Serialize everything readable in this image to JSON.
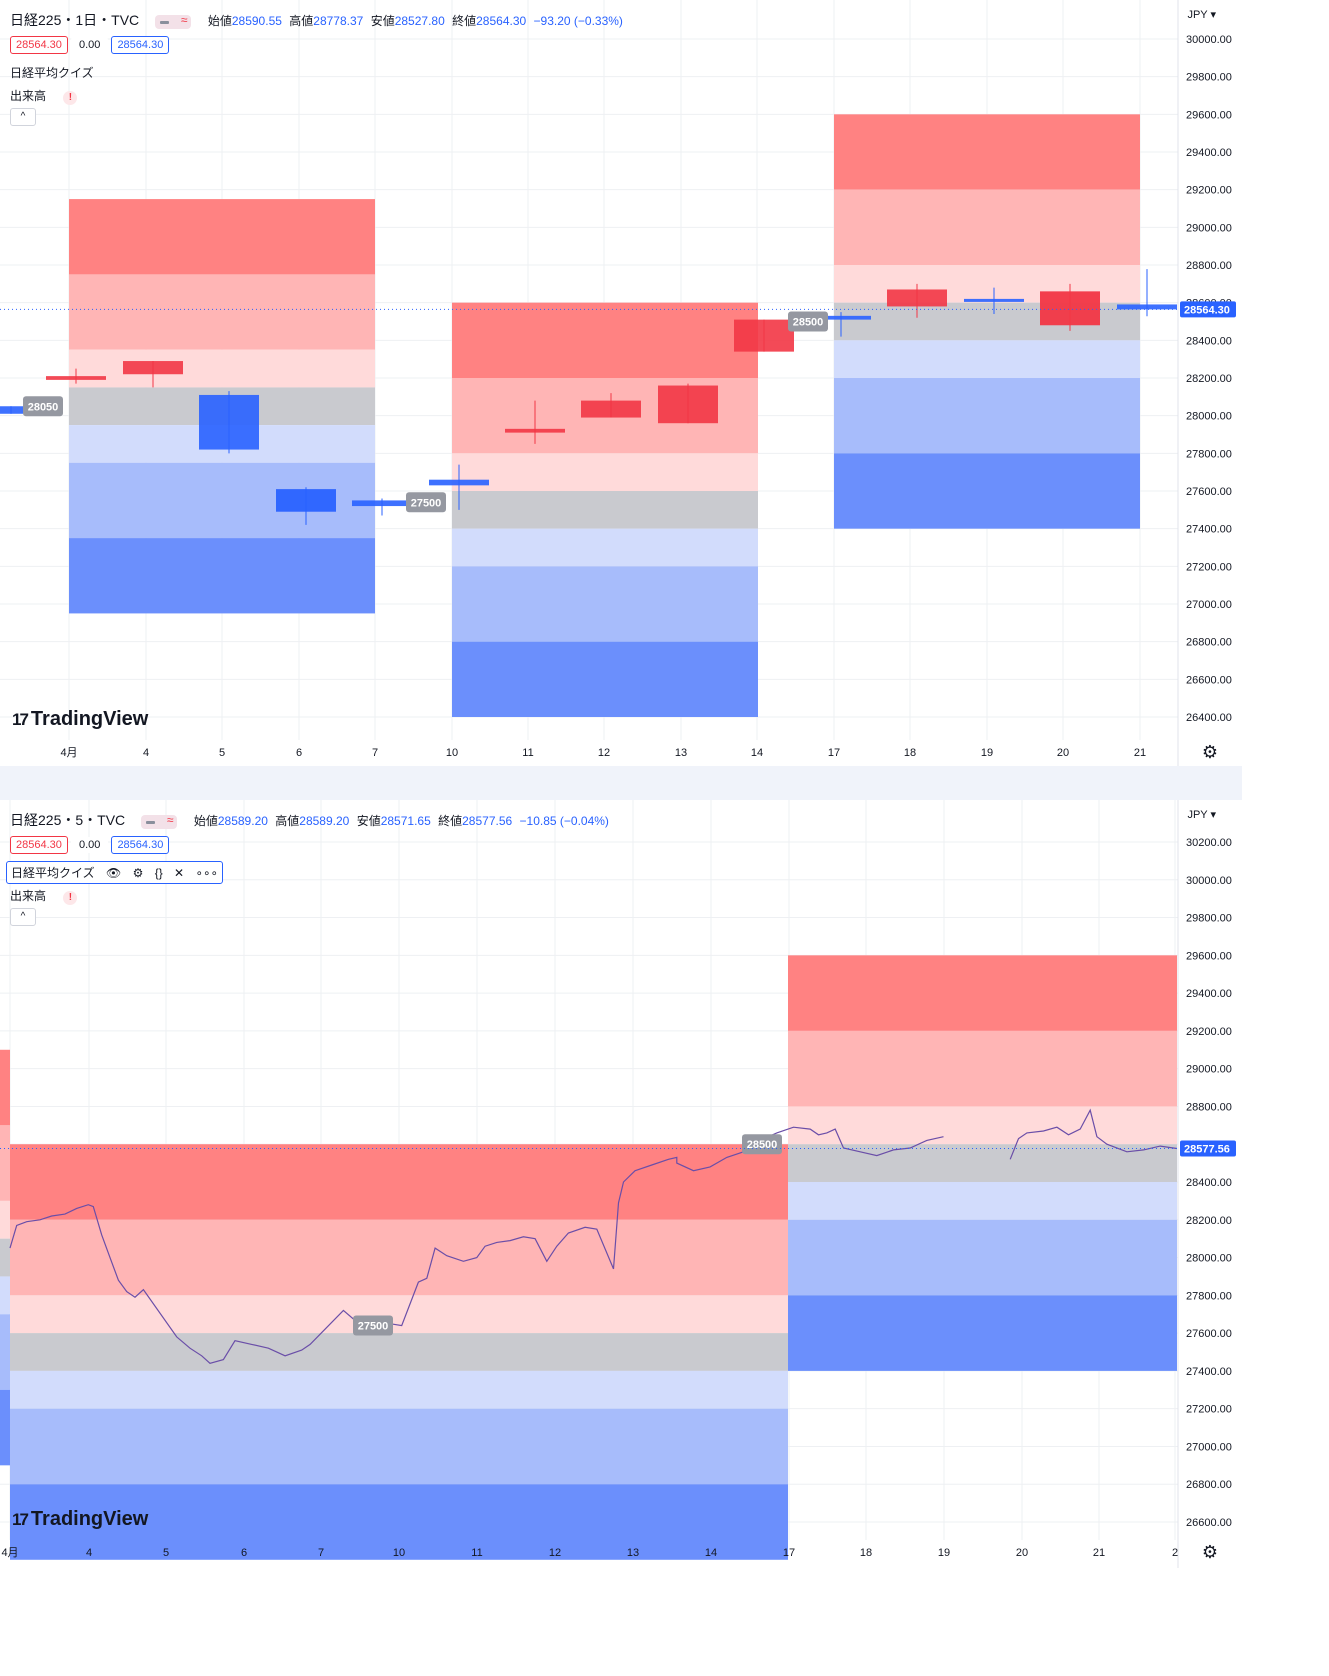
{
  "colors": {
    "red_strong": "#ff8282",
    "red_mid": "#ffb5b5",
    "red_light": "#ffdada",
    "gray_band": "#c9cacf",
    "blue_light": "#d2dcfc",
    "blue_mid": "#a7bcfb",
    "blue_strong": "#6b8ffc",
    "candle_up": "#f23645",
    "candle_down": "#2962ff",
    "accent_blue": "#2962ff",
    "grid": "#eef0f3",
    "label_gray": "#9598a1"
  },
  "top_chart": {
    "symbol": "日経225・1日・TVC",
    "ohlc": [
      {
        "key": "始値",
        "value": "28590.55"
      },
      {
        "key": "高値",
        "value": "28778.37"
      },
      {
        "key": "安値",
        "value": "28527.80"
      },
      {
        "key": "終値",
        "value": "28564.30"
      }
    ],
    "change": "−93.20 (−0.33%)",
    "price_boxes": {
      "bid": "28564.30",
      "spread": "0.00",
      "ask": "28564.30"
    },
    "indicator_name": "日経平均クイズ",
    "volume_label": "出来高",
    "warning_symbol": "!",
    "collapse_symbol": "^",
    "watermark": "TradingView",
    "currency": "JPY",
    "current_price_label": "28564.30",
    "gear_symbol": "⚙"
  },
  "bottom_chart": {
    "symbol": "日経225・5・TVC",
    "ohlc": [
      {
        "key": "始値",
        "value": "28589.20"
      },
      {
        "key": "高値",
        "value": "28589.20"
      },
      {
        "key": "安値",
        "value": "28571.65"
      },
      {
        "key": "終値",
        "value": "28577.56"
      }
    ],
    "change": "−10.85 (−0.04%)",
    "price_boxes": {
      "bid": "28564.30",
      "spread": "0.00",
      "ask": "28564.30"
    },
    "indicator_name": "日経平均クイズ",
    "indicator_icons": [
      "eye-icon",
      "gear-icon",
      "braces-icon",
      "close-icon",
      "more-icon"
    ],
    "indicator_icon_glyphs": [
      "👁",
      "⚙",
      "{}",
      "✕",
      "∘∘∘"
    ],
    "volume_label": "出来高",
    "warning_symbol": "!",
    "collapse_symbol": "^",
    "watermark": "TradingView",
    "currency": "JPY",
    "current_price_label": "28577.56",
    "gear_symbol": "⚙"
  },
  "chart_data": [
    {
      "type": "candlestick",
      "title": "日経225・1日・TVC",
      "currency": "JPY",
      "ylim": [
        26300,
        30120
      ],
      "y_ticks": [
        "30000.00",
        "29800.00",
        "29600.00",
        "29400.00",
        "29200.00",
        "29000.00",
        "28800.00",
        "28600.00",
        "28400.00",
        "28200.00",
        "28000.00",
        "27800.00",
        "27600.00",
        "27400.00",
        "27200.00",
        "27000.00",
        "26800.00",
        "26600.00",
        "26400.00"
      ],
      "x_ticks": [
        "4月",
        "4",
        "5",
        "6",
        "7",
        "10",
        "11",
        "12",
        "13",
        "14",
        "17",
        "18",
        "19",
        "20",
        "21"
      ],
      "current_price": 28564.3,
      "candles": [
        {
          "x": "3/31",
          "open": 28050,
          "high": 28050,
          "low": 28010,
          "close": 28010
        },
        {
          "x": "4/3",
          "open": 28190,
          "high": 28250,
          "low": 28170,
          "close": 28210
        },
        {
          "x": "4/4",
          "open": 28220,
          "high": 28290,
          "low": 28150,
          "close": 28290
        },
        {
          "x": "4/5",
          "open": 28110,
          "high": 28130,
          "low": 27800,
          "close": 27820
        },
        {
          "x": "4/6",
          "open": 27610,
          "high": 27620,
          "low": 27420,
          "close": 27490
        },
        {
          "x": "4/7",
          "open": 27550,
          "high": 27560,
          "low": 27470,
          "close": 27520
        },
        {
          "x": "4/10",
          "open": 27660,
          "high": 27740,
          "low": 27500,
          "close": 27630
        },
        {
          "x": "4/11",
          "open": 27910,
          "high": 28080,
          "low": 27850,
          "close": 27930
        },
        {
          "x": "4/12",
          "open": 27990,
          "high": 28120,
          "low": 27990,
          "close": 28080
        },
        {
          "x": "4/13",
          "open": 27960,
          "high": 28170,
          "low": 27960,
          "close": 28160
        },
        {
          "x": "4/14",
          "open": 28340,
          "high": 28510,
          "low": 28340,
          "close": 28510
        },
        {
          "x": "4/17",
          "open": 28530,
          "high": 28550,
          "low": 28420,
          "close": 28510
        },
        {
          "x": "4/18",
          "open": 28580,
          "high": 28700,
          "low": 28520,
          "close": 28670
        },
        {
          "x": "4/19",
          "open": 28620,
          "high": 28680,
          "low": 28540,
          "close": 28610
        },
        {
          "x": "4/20",
          "open": 28480,
          "high": 28700,
          "low": 28450,
          "close": 28660
        },
        {
          "x": "4/21",
          "open": 28590.55,
          "high": 28778.37,
          "low": 28527.8,
          "close": 28564.3
        }
      ],
      "zones": [
        {
          "label": "28050",
          "center": 28050,
          "period": "4/3–4/7"
        },
        {
          "label": "27500",
          "center": 27500,
          "period": "4/10–4/14"
        },
        {
          "label": "28500",
          "center": 28500,
          "period": "4/17–4/21"
        }
      ]
    },
    {
      "type": "line",
      "title": "日経225・5・TVC",
      "currency": "JPY",
      "ylim": [
        26500,
        30300
      ],
      "y_ticks": [
        "30200.00",
        "30000.00",
        "29800.00",
        "29600.00",
        "29400.00",
        "29200.00",
        "29000.00",
        "28800.00",
        "28600.00",
        "28400.00",
        "28200.00",
        "28000.00",
        "27800.00",
        "27600.00",
        "27400.00",
        "27200.00",
        "27000.00",
        "26800.00",
        "26600.00"
      ],
      "x_ticks": [
        "4月",
        "4",
        "5",
        "6",
        "7",
        "10",
        "11",
        "12",
        "13",
        "14",
        "17",
        "18",
        "19",
        "20",
        "21",
        "2"
      ],
      "current_price": 28577.56,
      "series": [
        {
          "values": [
            [
              0.0,
              28050
            ],
            [
              0.04,
              28170
            ],
            [
              0.1,
              28190
            ],
            [
              0.18,
              28200
            ],
            [
              0.25,
              28220
            ],
            [
              0.33,
              28230
            ],
            [
              0.4,
              28260
            ],
            [
              0.47,
              28280
            ],
            [
              0.5,
              28270
            ],
            [
              0.55,
              28120
            ],
            [
              0.6,
              28000
            ],
            [
              0.65,
              27880
            ],
            [
              0.7,
              27820
            ],
            [
              0.75,
              27790
            ],
            [
              0.8,
              27830
            ],
            [
              1.0,
              27580
            ],
            [
              1.08,
              27520
            ],
            [
              1.15,
              27480
            ],
            [
              1.2,
              27440
            ],
            [
              1.28,
              27460
            ],
            [
              1.35,
              27560
            ],
            [
              1.45,
              27540
            ],
            [
              1.55,
              27520
            ],
            [
              1.65,
              27480
            ],
            [
              1.75,
              27510
            ],
            [
              1.8,
              27540
            ],
            [
              2.0,
              27720
            ],
            [
              2.08,
              27660
            ],
            [
              2.18,
              27630
            ],
            [
              2.28,
              27650
            ],
            [
              2.35,
              27640
            ],
            [
              2.45,
              27870
            ],
            [
              2.5,
              27890
            ],
            [
              2.55,
              28050
            ],
            [
              2.62,
              28010
            ],
            [
              2.72,
              27980
            ],
            [
              2.8,
              28000
            ],
            [
              2.85,
              28060
            ],
            [
              2.92,
              28080
            ],
            [
              3.0,
              28090
            ],
            [
              3.08,
              28110
            ],
            [
              3.15,
              28100
            ],
            [
              3.22,
              27980
            ],
            [
              3.28,
              28060
            ],
            [
              3.35,
              28130
            ],
            [
              3.45,
              28160
            ],
            [
              3.52,
              28150
            ],
            [
              3.62,
              27940
            ],
            [
              3.65,
              28290
            ],
            [
              3.68,
              28400
            ],
            [
              3.75,
              28460
            ],
            [
              3.85,
              28490
            ],
            [
              3.95,
              28520
            ],
            [
              4.0,
              28530
            ],
            [
              4.0,
              28500
            ],
            [
              4.1,
              28460
            ],
            [
              4.2,
              28480
            ],
            [
              4.3,
              28530
            ],
            [
              4.4,
              28560
            ],
            [
              4.5,
              28620
            ],
            [
              4.6,
              28660
            ],
            [
              4.7,
              28690
            ],
            [
              4.8,
              28680
            ],
            [
              4.85,
              28650
            ],
            [
              4.9,
              28660
            ],
            [
              4.95,
              28680
            ],
            [
              5.0,
              28580
            ],
            [
              5.1,
              28560
            ],
            [
              5.2,
              28540
            ],
            [
              5.3,
              28570
            ],
            [
              5.4,
              28580
            ],
            [
              5.5,
              28620
            ],
            [
              5.6,
              28640
            ],
            [
              6.0,
              28520
            ],
            [
              6.05,
              28630
            ],
            [
              6.1,
              28660
            ],
            [
              6.2,
              28670
            ],
            [
              6.28,
              28690
            ],
            [
              6.35,
              28650
            ],
            [
              6.42,
              28680
            ],
            [
              6.48,
              28780
            ],
            [
              6.52,
              28640
            ],
            [
              6.58,
              28600
            ],
            [
              6.7,
              28560
            ],
            [
              6.8,
              28570
            ],
            [
              6.9,
              28590
            ],
            [
              7.0,
              28577.56
            ]
          ]
        }
      ],
      "zones": [
        {
          "label": "27500",
          "center": 27500,
          "period": "4/3–4/7"
        },
        {
          "label": "28500",
          "center": 28500,
          "period": "4/17–4/21"
        }
      ]
    }
  ]
}
